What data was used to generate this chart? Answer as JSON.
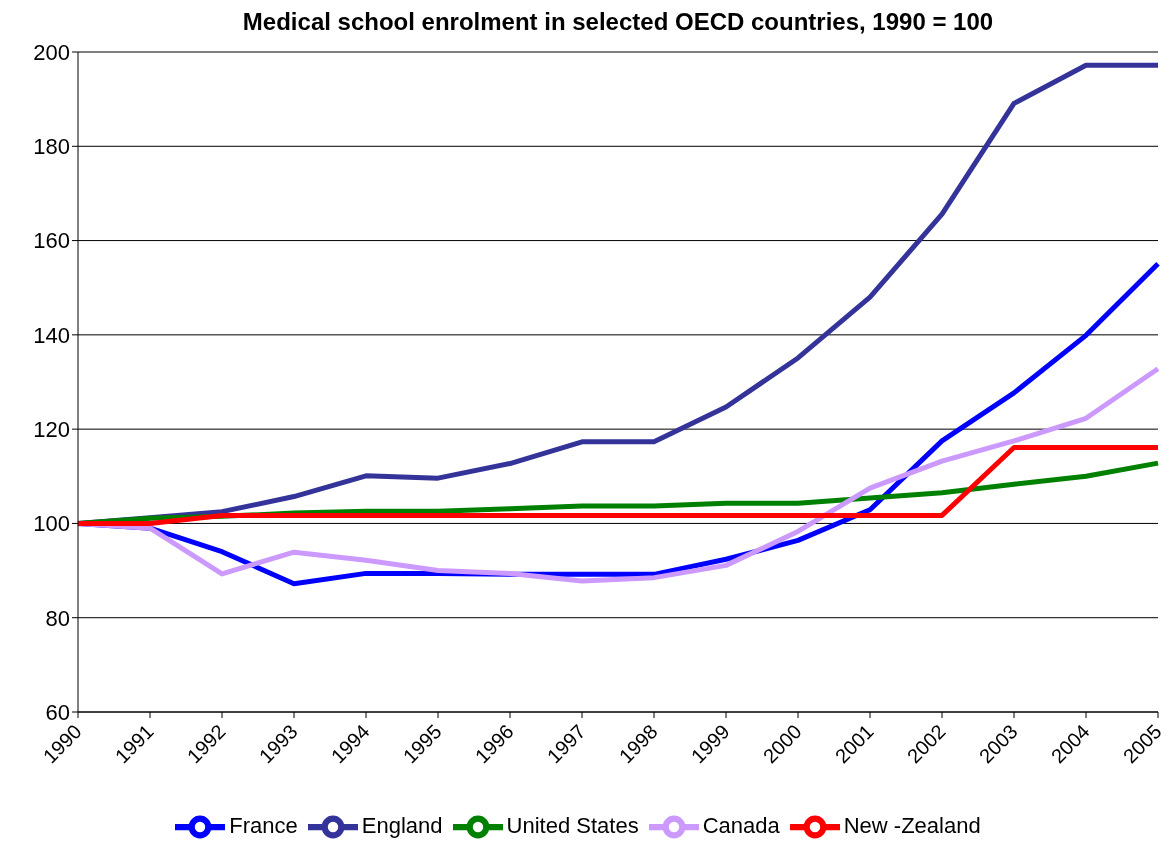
{
  "chart_data": {
    "type": "line",
    "title": "Medical school enrolment in selected OECD countries, 1990 = 100",
    "categories": [
      "1990",
      "1991",
      "1992",
      "1993",
      "1994",
      "1995",
      "1996",
      "1997",
      "1998",
      "1999",
      "2000",
      "2001",
      "2002",
      "2003",
      "2004",
      "2005"
    ],
    "series": [
      {
        "name": "France",
        "color": "#0000ff",
        "values": [
          100,
          99,
          94,
          87.2,
          89.4,
          89.4,
          89.2,
          89.2,
          89.2,
          92.4,
          96.4,
          102.9,
          117.5,
          127.7,
          139.9,
          155.1
        ]
      },
      {
        "name": "England",
        "color": "#333399",
        "values": [
          100,
          101.2,
          102.5,
          105.7,
          110.1,
          109.6,
          112.7,
          117.3,
          117.3,
          124.7,
          135.1,
          148,
          165.6,
          189.1,
          197.2,
          197.2
        ]
      },
      {
        "name": "United States",
        "color": "#008000",
        "values": [
          100,
          101.1,
          101.5,
          102.2,
          102.6,
          102.6,
          103.1,
          103.7,
          103.7,
          104.3,
          104.3,
          105.4,
          106.5,
          108.3,
          110,
          112.8
        ]
      },
      {
        "name": "Canada",
        "color": "#cc99ff",
        "values": [
          100,
          99,
          89.3,
          93.9,
          92.2,
          90,
          89.4,
          87.8,
          88.5,
          91.1,
          98.3,
          107.5,
          113.2,
          117.5,
          122.3,
          132.8
        ]
      },
      {
        "name": "New -Zealand",
        "color": "#ff0000",
        "values": [
          100,
          100,
          101.7,
          101.7,
          101.7,
          101.7,
          101.7,
          101.7,
          101.7,
          101.7,
          101.7,
          101.7,
          101.7,
          116.1,
          116.1,
          116.1
        ]
      }
    ],
    "ylim": [
      60,
      200
    ],
    "yticks": [
      60,
      80,
      100,
      120,
      140,
      160,
      180,
      200
    ],
    "grid": "y",
    "legend": "bottom",
    "marker": "none",
    "line_style": "solid"
  }
}
